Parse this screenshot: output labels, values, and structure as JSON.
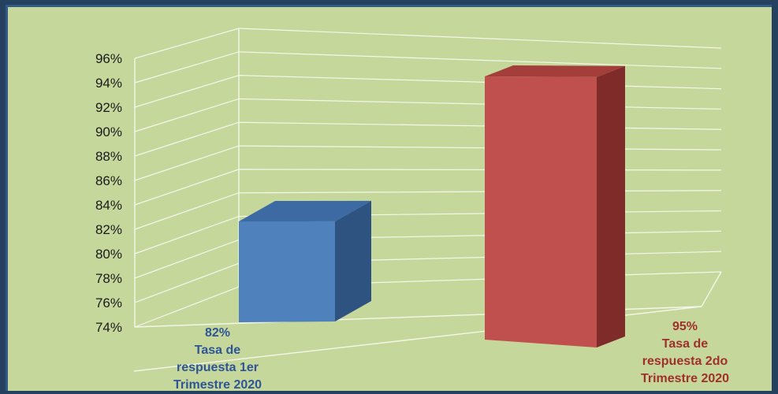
{
  "chart_data": {
    "type": "bar",
    "categories": [
      "Tasa de respuesta 1er Trimestre 2020",
      "Tasa de respuesta 2do Trimestre 2020"
    ],
    "values": [
      82,
      95
    ],
    "value_labels": [
      "82%",
      "95%"
    ],
    "category_label_lines": [
      [
        "Tasa de",
        "respuesta 1er",
        "Trimestre 2020"
      ],
      [
        "Tasa de",
        "respuesta 2do",
        "Trimestre 2020"
      ]
    ],
    "ylim": [
      74,
      96
    ],
    "yticks": [
      "74%",
      "76%",
      "78%",
      "80%",
      "82%",
      "84%",
      "86%",
      "88%",
      "90%",
      "92%",
      "94%",
      "96%"
    ],
    "grid": true,
    "legend": "none",
    "colors": {
      "bar1_front": "#4f81bd",
      "bar1_side": "#2f5380",
      "bar1_top": "#3d6aa3",
      "bar2_front": "#c0504d",
      "bar2_side": "#7f2b2a",
      "bar2_top": "#a33e3b",
      "label1": "#2e5597",
      "label2": "#a0302c"
    }
  }
}
